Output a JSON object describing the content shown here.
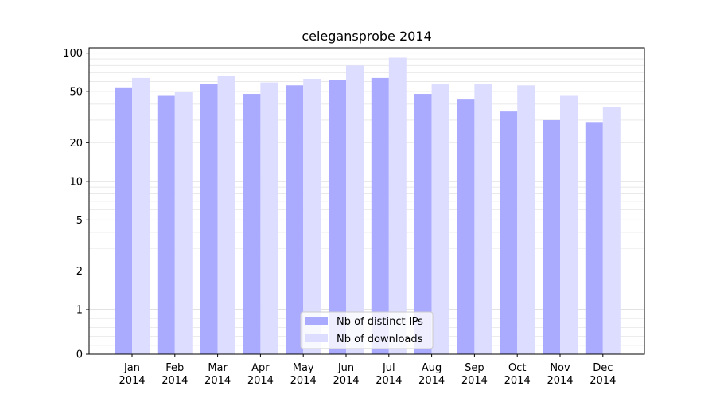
{
  "chart_data": {
    "type": "bar",
    "title": "celegansprobe 2014",
    "xlabel": "",
    "ylabel": "",
    "yscale": "symlog",
    "ylim": [
      0,
      110
    ],
    "grid": "horizontal",
    "legend_position": "bottom-center",
    "categories": [
      {
        "month": "Jan",
        "year": "2014"
      },
      {
        "month": "Feb",
        "year": "2014"
      },
      {
        "month": "Mar",
        "year": "2014"
      },
      {
        "month": "Apr",
        "year": "2014"
      },
      {
        "month": "May",
        "year": "2014"
      },
      {
        "month": "Jun",
        "year": "2014"
      },
      {
        "month": "Jul",
        "year": "2014"
      },
      {
        "month": "Aug",
        "year": "2014"
      },
      {
        "month": "Sep",
        "year": "2014"
      },
      {
        "month": "Oct",
        "year": "2014"
      },
      {
        "month": "Nov",
        "year": "2014"
      },
      {
        "month": "Dec",
        "year": "2014"
      }
    ],
    "yticks": [
      {
        "value": 0,
        "label": "0"
      },
      {
        "value": 1,
        "label": "1"
      },
      {
        "value": 2,
        "label": "2"
      },
      {
        "value": 5,
        "label": "5"
      },
      {
        "value": 10,
        "label": "10"
      },
      {
        "value": 20,
        "label": "20"
      },
      {
        "value": 50,
        "label": "50"
      },
      {
        "value": 100,
        "label": "100"
      }
    ],
    "series": [
      {
        "name": "Nb of distinct IPs",
        "color": "#aaaaff",
        "values": [
          54,
          47,
          57,
          48,
          56,
          62,
          64,
          48,
          44,
          35,
          30,
          29
        ]
      },
      {
        "name": "Nb of downloads",
        "color": "#ddddff",
        "values": [
          64,
          50,
          66,
          59,
          63,
          80,
          92,
          57,
          57,
          56,
          47,
          38
        ]
      }
    ]
  }
}
